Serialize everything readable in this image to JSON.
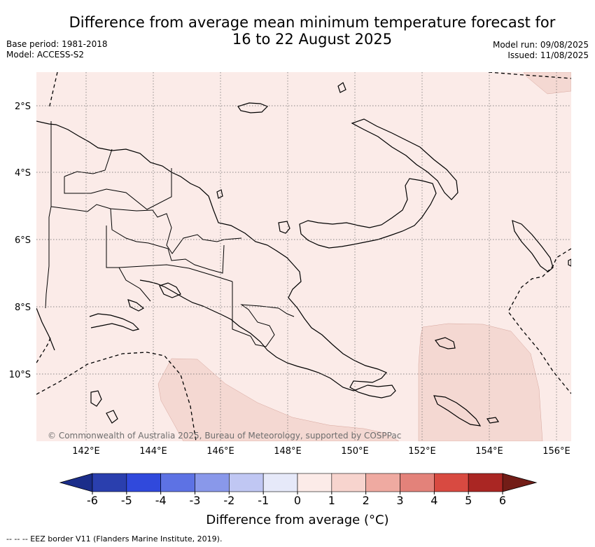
{
  "title_line1": "Difference from average mean minimum temperature forecast for",
  "title_line2": "16 to 22 August 2025",
  "meta_left": [
    "Base period: 1981-2018",
    "Model: ACCESS-S2"
  ],
  "meta_right": [
    "Model run: 09/08/2025",
    "Issued: 11/08/2025"
  ],
  "lat_labels": [
    "2°S",
    "4°S",
    "6°S",
    "8°S",
    "10°S"
  ],
  "lon_labels": [
    "142°E",
    "144°E",
    "146°E",
    "148°E",
    "150°E",
    "152°E",
    "154°E",
    "156°E"
  ],
  "copyright": "© Commonwealth of Australia 2025, Bureau of Meteorology, supported by COSPPac",
  "colorbar": {
    "ticks": [
      "-6",
      "-5",
      "-4",
      "-3",
      "-2",
      "-1",
      "0",
      "1",
      "2",
      "3",
      "4",
      "5",
      "6"
    ],
    "colors": [
      "#2a3fae",
      "#3049dc",
      "#5d72e4",
      "#8998ea",
      "#c0c7f3",
      "#e6e9f9",
      "#fcebe8",
      "#f7d4ce",
      "#efaaa1",
      "#e3827a",
      "#d84a41",
      "#aa2623"
    ],
    "under_color": "#1b2d8a",
    "over_color": "#721d17",
    "title": "Difference from average (°C)"
  },
  "map_colors": {
    "background": "#fbebe8",
    "warmer": "#f4d8d2"
  },
  "footer": "--  --  -- EEZ border V11 (Flanders Marine Institute, 2019)."
}
